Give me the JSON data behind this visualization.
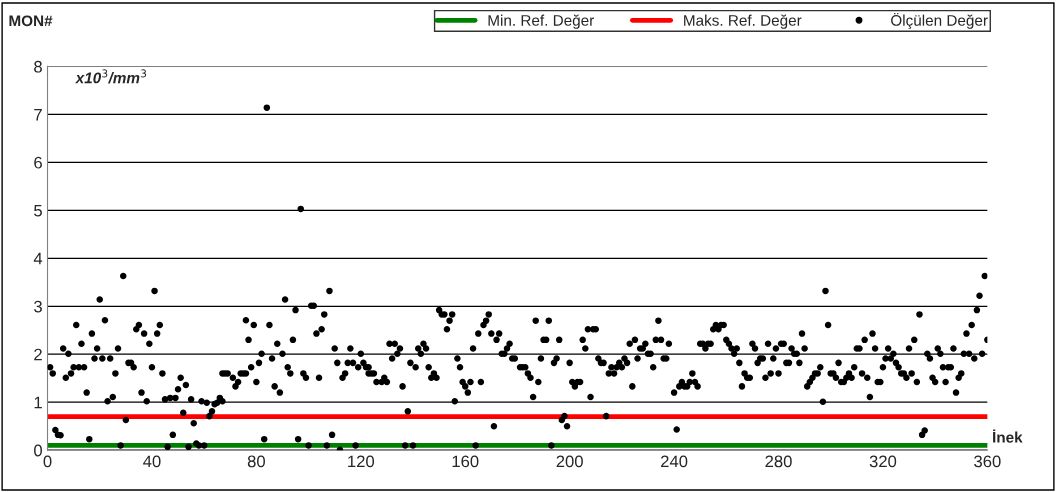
{
  "chart_data": {
    "type": "scatter",
    "title": "MON#",
    "ylabel": "x10$^{3}$/mm$^{3}$",
    "xlabel": "İnek",
    "xlim": [
      0,
      360
    ],
    "xticks": [
      0,
      40,
      80,
      120,
      160,
      200,
      240,
      280,
      320,
      360
    ],
    "ylim": [
      0,
      8
    ],
    "yticks": [
      0,
      1,
      2,
      3,
      4,
      5,
      6,
      7,
      8
    ],
    "grid": "y",
    "legend": "top right",
    "series": [
      {
        "name": "Min. Ref. Değer",
        "type": "line",
        "color": "#008000",
        "line_style": "solid",
        "marker": "none",
        "x": [
          0,
          360
        ],
        "values": [
          0.1,
          0.1
        ]
      },
      {
        "name": "Maks. Ref. Değer",
        "type": "line",
        "color": "#ff0000",
        "line_style": "solid",
        "marker": "none",
        "x": [
          0,
          360
        ],
        "values": [
          0.7,
          0.7
        ]
      },
      {
        "name": "Ölçülen Değer",
        "color": "#000000",
        "marker": "circle",
        "x": [
          1,
          2,
          3,
          4,
          5,
          6,
          7,
          8,
          9,
          10,
          11,
          12,
          13,
          14,
          15,
          16,
          17,
          18,
          19,
          20,
          21,
          22,
          23,
          24,
          25,
          26,
          27,
          28,
          29,
          30,
          31,
          32,
          33,
          34,
          35,
          36,
          37,
          38,
          39,
          40,
          41,
          42,
          43,
          44,
          45,
          46,
          47,
          48,
          49,
          50,
          51,
          52,
          53,
          54,
          55,
          56,
          57,
          58,
          59,
          60,
          61,
          62,
          63,
          64,
          65,
          66,
          67,
          67,
          68,
          69,
          71,
          72,
          73,
          74,
          75,
          76,
          76,
          77,
          78,
          79,
          80,
          81,
          82,
          83,
          84,
          85,
          86,
          87,
          88,
          89,
          90,
          91,
          92,
          93,
          94,
          95,
          96,
          97,
          98,
          99,
          100,
          101,
          102,
          103,
          104,
          105,
          106,
          107,
          108,
          109,
          110,
          111,
          112,
          113,
          114,
          115,
          116,
          117,
          118,
          119,
          120,
          121,
          122,
          123,
          123,
          124,
          125,
          126,
          128,
          129,
          130,
          131,
          132,
          133,
          134,
          135,
          136,
          137,
          138,
          139,
          140,
          141,
          142,
          143,
          144,
          145,
          146,
          147,
          148,
          149,
          150,
          151,
          152,
          153,
          154,
          155,
          156,
          157,
          158,
          159,
          160,
          161,
          162,
          163,
          164,
          165,
          166,
          167,
          168,
          169,
          170,
          171,
          172,
          173,
          174,
          175,
          176,
          177,
          178,
          179,
          181,
          182,
          183,
          184,
          185,
          186,
          187,
          188,
          189,
          190,
          191,
          192,
          193,
          194,
          195,
          196,
          197,
          198,
          199,
          200,
          201,
          202,
          203,
          204,
          205,
          206,
          207,
          208,
          209,
          210,
          211,
          212,
          213,
          214,
          215,
          216,
          217,
          218,
          219,
          220,
          221,
          222,
          223,
          224,
          225,
          226,
          227,
          228,
          229,
          230,
          231,
          232,
          233,
          234,
          235,
          236,
          237,
          238,
          240,
          241,
          242,
          243,
          244,
          245,
          246,
          247,
          248,
          249,
          250,
          251,
          252,
          253,
          254,
          255,
          256,
          257,
          258,
          259,
          260,
          261,
          262,
          263,
          264,
          265,
          266,
          267,
          268,
          269,
          270,
          271,
          272,
          273,
          274,
          275,
          276,
          277,
          278,
          279,
          280,
          281,
          282,
          283,
          284,
          285,
          286,
          287,
          288,
          289,
          290,
          291,
          292,
          293,
          294,
          295,
          296,
          297,
          298,
          299,
          300,
          301,
          302,
          303,
          304,
          305,
          306,
          307,
          308,
          309,
          310,
          311,
          312,
          313,
          314,
          315,
          316,
          317,
          318,
          319,
          320,
          321,
          322,
          323,
          324,
          325,
          326,
          327,
          328,
          329,
          330,
          331,
          332,
          333,
          334,
          335,
          336,
          337,
          338,
          339,
          340,
          341,
          342,
          343,
          344,
          345,
          346,
          347,
          348,
          349,
          350,
          351,
          352,
          353,
          354,
          355,
          356,
          357,
          358,
          359,
          360
        ],
        "values": [
          1.73,
          1.6,
          0.42,
          0.32,
          0.31,
          2.12,
          1.51,
          2.01,
          1.6,
          1.73,
          2.61,
          1.73,
          2.22,
          1.73,
          1.2,
          0.23,
          2.43,
          1.91,
          2.12,
          3.14,
          1.91,
          2.71,
          1.02,
          1.91,
          1.11,
          1.6,
          2.12,
          0.1,
          3.63,
          0.63,
          1.82,
          1.82,
          1.73,
          2.52,
          2.61,
          1.2,
          2.43,
          1.02,
          2.22,
          1.73,
          3.32,
          2.43,
          2.61,
          1.6,
          1.06,
          0.07,
          1.09,
          0.32,
          1.09,
          1.27,
          1.51,
          0.78,
          1.36,
          0.07,
          1.06,
          0.56,
          0.14,
          0.1,
          1.02,
          0.1,
          0.99,
          0.71,
          0.81,
          0.96,
          0.99,
          1.09,
          1.02,
          1.6,
          1.6,
          1.6,
          1.51,
          1.33,
          1.42,
          1.6,
          1.6,
          1.6,
          2.71,
          2.3,
          1.73,
          2.61,
          1.42,
          1.82,
          2.01,
          0.23,
          7.14,
          2.61,
          1.91,
          1.33,
          2.22,
          1.2,
          2.01,
          3.14,
          1.73,
          1.6,
          2.3,
          2.92,
          0.23,
          5.03,
          1.6,
          1.51,
          0.1,
          3.01,
          3.01,
          2.43,
          1.51,
          2.52,
          2.83,
          0.1,
          3.32,
          0.32,
          2.12,
          1.82,
          0.01,
          1.51,
          1.6,
          1.82,
          2.12,
          1.82,
          0.1,
          1.73,
          2.01,
          1.82,
          1.73,
          1.73,
          1.6,
          1.6,
          1.6,
          1.42,
          1.42,
          1.51,
          1.42,
          2.22,
          1.91,
          2.22,
          2.01,
          2.12,
          1.33,
          0.1,
          0.81,
          1.82,
          0.1,
          1.73,
          2.12,
          2.01,
          2.22,
          2.12,
          1.73,
          1.51,
          1.6,
          1.51,
          2.92,
          2.83,
          2.83,
          2.52,
          2.7,
          2.83,
          1.02,
          1.91,
          1.73,
          1.42,
          1.33,
          1.2,
          1.42,
          2.12,
          0.1,
          2.43,
          1.42,
          2.61,
          2.7,
          2.83,
          2.43,
          0.5,
          2.3,
          2.43,
          2.01,
          2.01,
          2.12,
          2.22,
          1.91,
          1.91,
          1.73,
          1.73,
          1.73,
          1.6,
          1.51,
          1.11,
          2.7,
          1.42,
          1.91,
          2.3,
          2.3,
          2.7,
          0.1,
          1.82,
          1.91,
          2.3,
          0.63,
          0.71,
          0.5,
          1.82,
          1.42,
          1.33,
          1.42,
          1.42,
          2.3,
          2.12,
          2.52,
          1.11,
          2.52,
          2.52,
          1.91,
          1.82,
          1.82,
          0.71,
          1.6,
          1.73,
          1.6,
          1.73,
          1.82,
          1.73,
          1.91,
          1.82,
          2.22,
          1.33,
          2.3,
          1.91,
          2.12,
          2.12,
          2.22,
          2.01,
          2.01,
          1.73,
          2.3,
          2.7,
          2.3,
          1.91,
          1.91,
          2.22,
          1.2,
          0.43,
          1.33,
          1.42,
          1.33,
          1.33,
          1.42,
          1.6,
          1.42,
          1.33,
          2.22,
          2.22,
          2.12,
          2.22,
          2.22,
          2.52,
          2.61,
          2.52,
          2.61,
          2.61,
          2.3,
          2.22,
          2.12,
          2.01,
          2.12,
          1.82,
          1.33,
          1.6,
          1.51,
          1.51,
          2.22,
          2.12,
          1.82,
          1.91,
          1.91,
          1.51,
          2.22,
          1.6,
          1.91,
          2.12,
          1.6,
          2.22,
          2.22,
          1.82,
          1.82,
          2.12,
          2.01,
          2.01,
          1.82,
          2.43,
          2.12,
          1.33,
          1.42,
          1.51,
          1.6,
          1.6,
          1.73,
          1.01,
          3.32,
          2.61,
          1.6,
          1.6,
          1.51,
          1.82,
          1.42,
          1.42,
          1.51,
          1.6,
          1.51,
          1.73,
          2.12,
          2.12,
          1.6,
          2.3,
          1.51,
          1.11,
          2.43,
          2.12,
          1.42,
          1.42,
          1.73,
          1.91,
          2.12,
          1.91,
          2.01,
          1.82,
          1.73,
          1.6,
          1.6,
          1.51,
          2.12,
          1.6,
          2.3,
          1.42,
          2.83,
          0.32,
          0.41,
          2.01,
          1.91,
          1.51,
          1.42,
          2.12,
          2.01,
          1.73,
          1.42,
          1.73,
          1.73,
          2.12,
          1.2,
          1.51,
          1.6,
          2.01,
          2.43,
          2.01,
          2.61,
          1.91,
          2.92,
          3.22,
          2.01,
          3.63,
          2.3
        ]
      }
    ]
  }
}
